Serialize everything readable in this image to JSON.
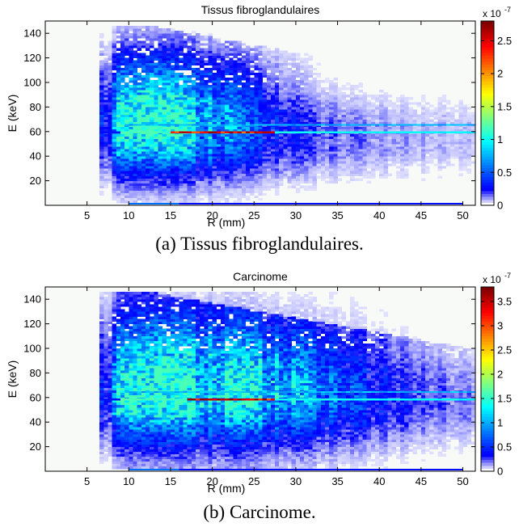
{
  "figure": {
    "captions": [
      "(a) Tissus fibroglandulaires.",
      "(b) Carcinome."
    ]
  },
  "chart_data": [
    {
      "type": "heatmap",
      "title": "Tissus fibroglandulaires",
      "xlabel": "R (mm)",
      "ylabel": "E (keV)",
      "xlim": [
        0,
        51.5
      ],
      "ylim": [
        0,
        150
      ],
      "xticks": [
        5,
        10,
        15,
        20,
        25,
        30,
        35,
        40,
        45,
        50
      ],
      "yticks": [
        20,
        40,
        60,
        80,
        100,
        120,
        140
      ],
      "colorbar": {
        "min": 0,
        "max": 2.8,
        "ticks": [
          0,
          0.5,
          1,
          1.5,
          2,
          2.5
        ],
        "multiplier": "x 10",
        "exponent": "-7",
        "colormap": "jet (white at zero)"
      },
      "peak_line_keV": 59.5,
      "features": {
        "r_start_mm": 6.5,
        "dense_core_r_mm": [
          9,
          17
        ],
        "dense_core_e_keV": [
          40,
          115
        ],
        "column_boundaries_mm": [
          7.5,
          18.5,
          20.5,
          26.5,
          28.5,
          33.0,
          35.5,
          39.0,
          41.5,
          44.0,
          46.0,
          48.5,
          51.5
        ],
        "hot_stripe_peak": 2.7,
        "hot_stripe_r_mm": [
          15,
          27
        ]
      }
    },
    {
      "type": "heatmap",
      "title": "Carcinome",
      "xlabel": "R (mm)",
      "ylabel": "E (keV)",
      "xlim": [
        0,
        51.5
      ],
      "ylim": [
        0,
        150
      ],
      "xticks": [
        5,
        10,
        15,
        20,
        25,
        30,
        35,
        40,
        45,
        50
      ],
      "yticks": [
        20,
        40,
        60,
        80,
        100,
        120,
        140
      ],
      "colorbar": {
        "min": 0,
        "max": 3.8,
        "ticks": [
          0,
          0.5,
          1,
          1.5,
          2,
          2.5,
          3,
          3.5
        ],
        "multiplier": "x 10",
        "exponent": "-7",
        "colormap": "jet (white at zero)"
      },
      "peak_line_keV": 58.5,
      "features": {
        "r_start_mm": 6.5,
        "dense_core_r_mm": [
          9,
          26
        ],
        "dense_core_e_keV": [
          35,
          125
        ],
        "column_boundaries_mm": [
          7.5,
          18.5,
          20.5,
          26.5,
          28.5,
          33.0,
          35.5,
          39.0,
          41.5,
          44.0,
          46.0,
          48.5,
          51.5
        ],
        "hot_stripe_peak": 3.7,
        "hot_stripe_r_mm": [
          17,
          27
        ]
      }
    }
  ]
}
